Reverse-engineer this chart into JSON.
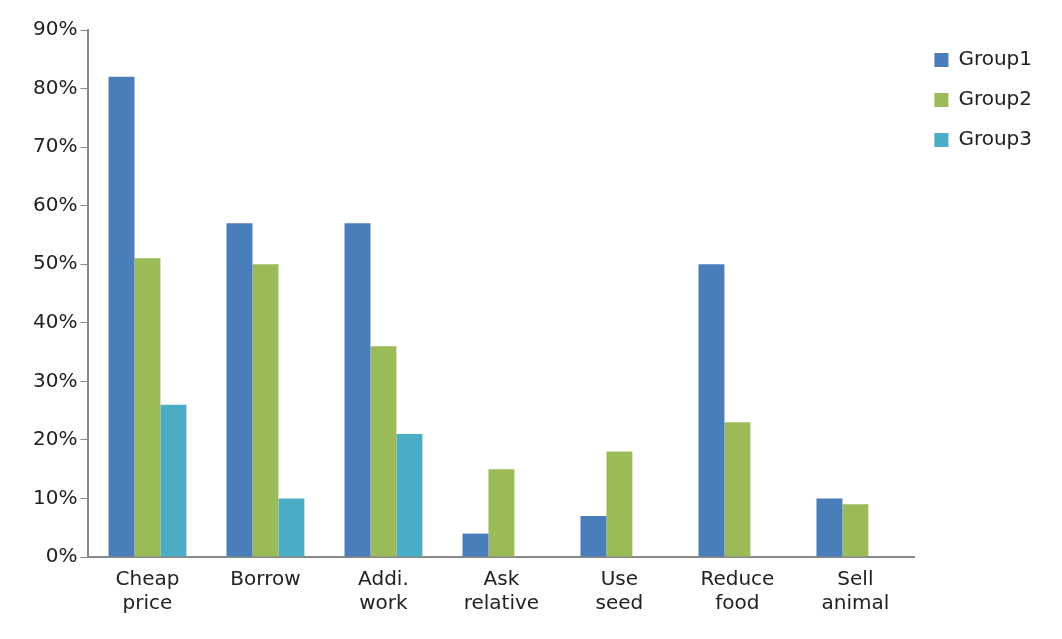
{
  "chart_data": {
    "type": "bar",
    "categories": [
      "Cheap price",
      "Borrow",
      "Addi. work",
      "Ask relative",
      "Use seed",
      "Reduce food",
      "Sell animal"
    ],
    "series": [
      {
        "name": "Group1",
        "color": "#4a7ebb",
        "values": [
          82,
          57,
          57,
          4,
          7,
          50,
          10
        ]
      },
      {
        "name": "Group2",
        "color": "#9bbb59",
        "values": [
          51,
          50,
          36,
          15,
          18,
          23,
          9
        ]
      },
      {
        "name": "Group3",
        "color": "#4bacc6",
        "values": [
          26,
          10,
          21,
          null,
          null,
          null,
          null
        ]
      }
    ],
    "ylim": [
      0,
      90
    ],
    "yticks": [
      {
        "value": 0,
        "label": "0%"
      },
      {
        "value": 10,
        "label": "10%"
      },
      {
        "value": 20,
        "label": "20%"
      },
      {
        "value": 30,
        "label": "30%"
      },
      {
        "value": 40,
        "label": "40%"
      },
      {
        "value": 50,
        "label": "50%"
      },
      {
        "value": 60,
        "label": "60%"
      },
      {
        "value": 70,
        "label": "70%"
      },
      {
        "value": 80,
        "label": "80%"
      },
      {
        "value": 90,
        "label": "90%"
      }
    ],
    "grid": false,
    "legend": "top right"
  }
}
